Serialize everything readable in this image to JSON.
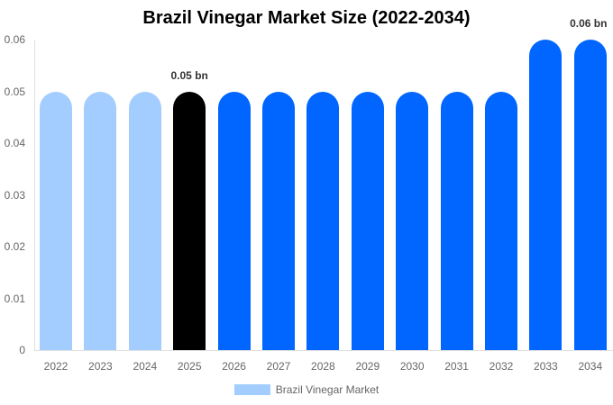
{
  "chart_data": {
    "type": "bar",
    "title": "Brazil Vinegar Market Size (2022-2034)",
    "xlabel": "",
    "ylabel": "",
    "ylim": [
      0,
      0.06
    ],
    "yticks": [
      "0",
      "0.01",
      "0.02",
      "0.03",
      "0.04",
      "0.05",
      "0.06"
    ],
    "grid": false,
    "legend_position": "bottom",
    "categories": [
      "2022",
      "2023",
      "2024",
      "2025",
      "2026",
      "2027",
      "2028",
      "2029",
      "2030",
      "2031",
      "2032",
      "2033",
      "2034"
    ],
    "series": [
      {
        "name": "Brazil Vinegar Market",
        "values": [
          0.05,
          0.05,
          0.05,
          0.05,
          0.05,
          0.05,
          0.05,
          0.05,
          0.05,
          0.05,
          0.05,
          0.06,
          0.06
        ]
      }
    ],
    "bar_colors": [
      "#a3cdff",
      "#a3cdff",
      "#a3cdff",
      "#000000",
      "#0066ff",
      "#0066ff",
      "#0066ff",
      "#0066ff",
      "#0066ff",
      "#0066ff",
      "#0066ff",
      "#0066ff",
      "#0066ff"
    ],
    "annotations": [
      {
        "category": "2025",
        "text": "0.05 bn"
      },
      {
        "category": "2034",
        "text": "0.06 bn"
      }
    ]
  },
  "legend": {
    "label": "Brazil Vinegar Market",
    "color": "#a3cdff"
  }
}
